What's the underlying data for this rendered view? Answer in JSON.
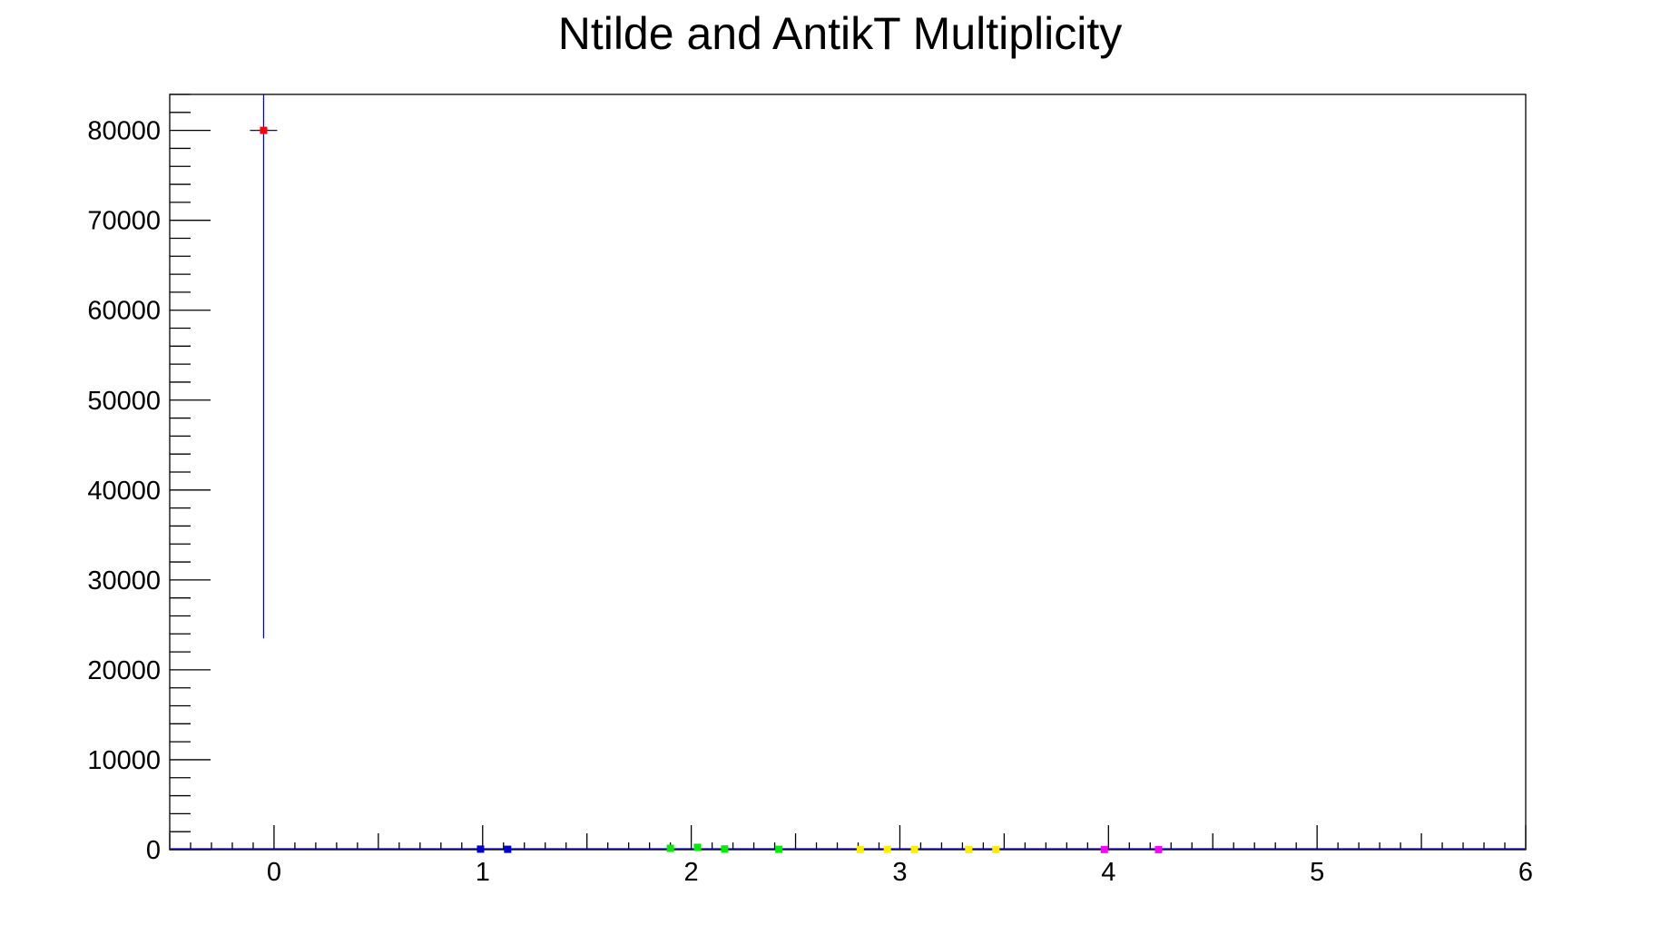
{
  "chart_data": {
    "type": "scatter",
    "title": "Ntilde and AntikT Multiplicity",
    "xlabel": "",
    "ylabel": "",
    "xlim": [
      -0.5,
      6
    ],
    "ylim": [
      0,
      84000
    ],
    "x_major_ticks": [
      0,
      1,
      2,
      3,
      4,
      5,
      6
    ],
    "x_tick_labels": [
      "0",
      "1",
      "2",
      "3",
      "4",
      "5",
      "6"
    ],
    "x_minor_step": 0.1,
    "y_major_ticks": [
      0,
      10000,
      20000,
      30000,
      40000,
      50000,
      60000,
      70000,
      80000
    ],
    "y_tick_labels": [
      "0",
      "10000",
      "20000",
      "30000",
      "40000",
      "50000",
      "60000",
      "70000",
      "80000"
    ],
    "y_minor_step": 2000,
    "grid": false,
    "legend": "none",
    "colors": {
      "axis": "#000000",
      "error_bar": "#0000cc"
    },
    "series": [
      {
        "color": "#ff0000",
        "points": [
          {
            "x": -0.05,
            "y": 80000,
            "y_low": 23500,
            "y_high": 84000
          }
        ]
      },
      {
        "color": "#0000cc",
        "points": [
          {
            "x": 0.99,
            "y": 60
          },
          {
            "x": 1.12,
            "y": 40
          }
        ]
      },
      {
        "color": "#00ee00",
        "points": [
          {
            "x": 1.9,
            "y": 150
          },
          {
            "x": 2.03,
            "y": 260
          },
          {
            "x": 2.16,
            "y": 80
          },
          {
            "x": 2.42,
            "y": 40
          }
        ]
      },
      {
        "color": "#ffee00",
        "points": [
          {
            "x": 2.81,
            "y": 20
          },
          {
            "x": 2.94,
            "y": 30
          },
          {
            "x": 3.07,
            "y": 20
          },
          {
            "x": 3.33,
            "y": 15
          },
          {
            "x": 3.46,
            "y": 10
          }
        ]
      },
      {
        "color": "#ff00ff",
        "points": [
          {
            "x": 3.98,
            "y": 15
          },
          {
            "x": 4.24,
            "y": 10
          }
        ]
      }
    ]
  }
}
